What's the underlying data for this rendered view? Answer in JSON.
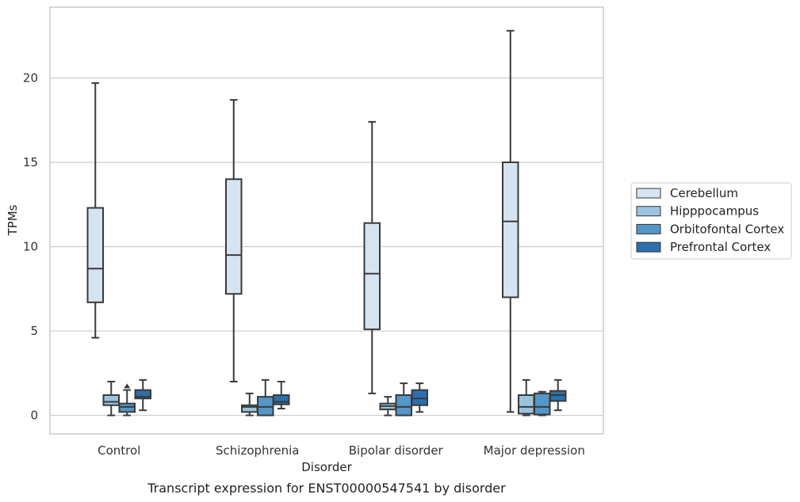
{
  "chart_data": {
    "type": "boxplot",
    "title": "",
    "caption": "Transcript expression for ENST00000547541 by disorder",
    "xlabel": "Disorder",
    "ylabel": "TPMs",
    "ylim": [
      -1.1,
      24.2
    ],
    "yticks": [
      0,
      5,
      10,
      15,
      20
    ],
    "grid": "horizontal",
    "legend_position": "right, outside plot",
    "categories": [
      "Control",
      "Schizophrenia",
      "Bipolar disorder",
      "Major depression"
    ],
    "series": [
      {
        "name": "Cerebellum",
        "color": "#d6e4f2",
        "boxes": [
          {
            "whislo": 4.6,
            "q1": 6.7,
            "med": 8.7,
            "q3": 12.3,
            "whishi": 19.7,
            "fliers": []
          },
          {
            "whislo": 2.0,
            "q1": 7.2,
            "med": 9.5,
            "q3": 14.0,
            "whishi": 18.7,
            "fliers": []
          },
          {
            "whislo": 1.3,
            "q1": 5.1,
            "med": 8.4,
            "q3": 11.4,
            "whishi": 17.4,
            "fliers": []
          },
          {
            "whislo": 0.2,
            "q1": 7.0,
            "med": 11.5,
            "q3": 15.0,
            "whishi": 22.8,
            "fliers": []
          }
        ]
      },
      {
        "name": "Hipppocampus",
        "color": "#9ac3de",
        "boxes": [
          {
            "whislo": 0.0,
            "q1": 0.6,
            "med": 0.8,
            "q3": 1.2,
            "whishi": 2.0,
            "fliers": []
          },
          {
            "whislo": 0.0,
            "q1": 0.2,
            "med": 0.5,
            "q3": 0.6,
            "whishi": 1.3,
            "fliers": []
          },
          {
            "whislo": 0.0,
            "q1": 0.35,
            "med": 0.55,
            "q3": 0.7,
            "whishi": 1.1,
            "fliers": []
          },
          {
            "whislo": 0.0,
            "q1": 0.1,
            "med": 0.5,
            "q3": 1.2,
            "whishi": 2.1,
            "fliers": []
          }
        ]
      },
      {
        "name": "Orbitofontal Cortex",
        "color": "#5496c8",
        "boxes": [
          {
            "whislo": 0.0,
            "q1": 0.2,
            "med": 0.5,
            "q3": 0.7,
            "whishi": 1.5,
            "fliers": [
              1.7
            ]
          },
          {
            "whislo": 0.0,
            "q1": 0.0,
            "med": 0.5,
            "q3": 1.1,
            "whishi": 2.1,
            "fliers": []
          },
          {
            "whislo": 0.0,
            "q1": 0.0,
            "med": 0.5,
            "q3": 1.2,
            "whishi": 1.9,
            "fliers": []
          },
          {
            "whislo": 0.0,
            "q1": 0.05,
            "med": 0.5,
            "q3": 1.3,
            "whishi": 1.4,
            "fliers": []
          }
        ]
      },
      {
        "name": "Prefrontal Cortex",
        "color": "#2b6fae",
        "boxes": [
          {
            "whislo": 0.3,
            "q1": 1.0,
            "med": 1.1,
            "q3": 1.5,
            "whishi": 2.1,
            "fliers": []
          },
          {
            "whislo": 0.4,
            "q1": 0.65,
            "med": 0.8,
            "q3": 1.2,
            "whishi": 2.0,
            "fliers": []
          },
          {
            "whislo": 0.2,
            "q1": 0.6,
            "med": 1.0,
            "q3": 1.5,
            "whishi": 1.9,
            "fliers": []
          },
          {
            "whislo": 0.3,
            "q1": 0.85,
            "med": 1.2,
            "q3": 1.45,
            "whishi": 2.1,
            "fliers": []
          }
        ]
      }
    ]
  }
}
